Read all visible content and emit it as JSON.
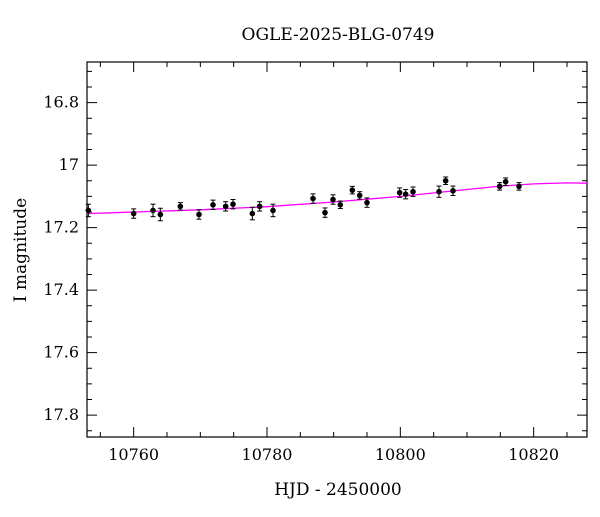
{
  "chart_data": {
    "type": "scatter",
    "title": "OGLE-2025-BLG-0749",
    "xlabel": "HJD - 2450000",
    "ylabel": "I magnitude",
    "xlim": [
      10753,
      10828
    ],
    "ylim": [
      17.87,
      16.67
    ],
    "y_inverted": true,
    "x_ticks": [
      10760,
      10780,
      10800,
      10820
    ],
    "y_ticks": [
      16.8,
      17,
      17.2,
      17.4,
      17.6,
      17.8
    ],
    "y_tick_labels": [
      "16.8",
      "17",
      "17.2",
      "17.4",
      "17.6",
      "17.8"
    ],
    "grid": false,
    "series": [
      {
        "kind": "points_with_errorbars",
        "color": "#000000",
        "points": [
          {
            "x": 10753.2,
            "y": 17.145,
            "err": 0.02
          },
          {
            "x": 10760.0,
            "y": 17.155,
            "err": 0.015
          },
          {
            "x": 10762.9,
            "y": 17.145,
            "err": 0.02
          },
          {
            "x": 10764.0,
            "y": 17.158,
            "err": 0.02
          },
          {
            "x": 10767.0,
            "y": 17.132,
            "err": 0.012
          },
          {
            "x": 10769.8,
            "y": 17.158,
            "err": 0.015
          },
          {
            "x": 10771.9,
            "y": 17.127,
            "err": 0.015
          },
          {
            "x": 10773.8,
            "y": 17.132,
            "err": 0.015
          },
          {
            "x": 10774.9,
            "y": 17.125,
            "err": 0.015
          },
          {
            "x": 10777.8,
            "y": 17.155,
            "err": 0.02
          },
          {
            "x": 10778.9,
            "y": 17.132,
            "err": 0.015
          },
          {
            "x": 10780.9,
            "y": 17.145,
            "err": 0.02
          },
          {
            "x": 10786.9,
            "y": 17.107,
            "err": 0.015
          },
          {
            "x": 10788.7,
            "y": 17.152,
            "err": 0.015
          },
          {
            "x": 10789.9,
            "y": 17.11,
            "err": 0.015
          },
          {
            "x": 10791.0,
            "y": 17.127,
            "err": 0.012
          },
          {
            "x": 10792.8,
            "y": 17.08,
            "err": 0.012
          },
          {
            "x": 10793.9,
            "y": 17.097,
            "err": 0.012
          },
          {
            "x": 10795.0,
            "y": 17.12,
            "err": 0.015
          },
          {
            "x": 10799.9,
            "y": 17.088,
            "err": 0.015
          },
          {
            "x": 10800.8,
            "y": 17.093,
            "err": 0.015
          },
          {
            "x": 10801.9,
            "y": 17.085,
            "err": 0.015
          },
          {
            "x": 10805.8,
            "y": 17.085,
            "err": 0.018
          },
          {
            "x": 10806.8,
            "y": 17.05,
            "err": 0.012
          },
          {
            "x": 10807.9,
            "y": 17.082,
            "err": 0.015
          },
          {
            "x": 10814.9,
            "y": 17.068,
            "err": 0.012
          },
          {
            "x": 10815.8,
            "y": 17.053,
            "err": 0.012
          },
          {
            "x": 10817.8,
            "y": 17.068,
            "err": 0.012
          }
        ]
      },
      {
        "kind": "model_line",
        "color": "#ff00ff",
        "points": [
          {
            "x": 10753,
            "y": 17.155
          },
          {
            "x": 10760,
            "y": 17.15
          },
          {
            "x": 10770,
            "y": 17.143
          },
          {
            "x": 10780,
            "y": 17.133
          },
          {
            "x": 10790,
            "y": 17.118
          },
          {
            "x": 10800,
            "y": 17.1
          },
          {
            "x": 10810,
            "y": 17.078
          },
          {
            "x": 10815,
            "y": 17.067
          },
          {
            "x": 10820,
            "y": 17.06
          },
          {
            "x": 10825,
            "y": 17.057
          },
          {
            "x": 10828,
            "y": 17.058
          }
        ]
      }
    ]
  }
}
